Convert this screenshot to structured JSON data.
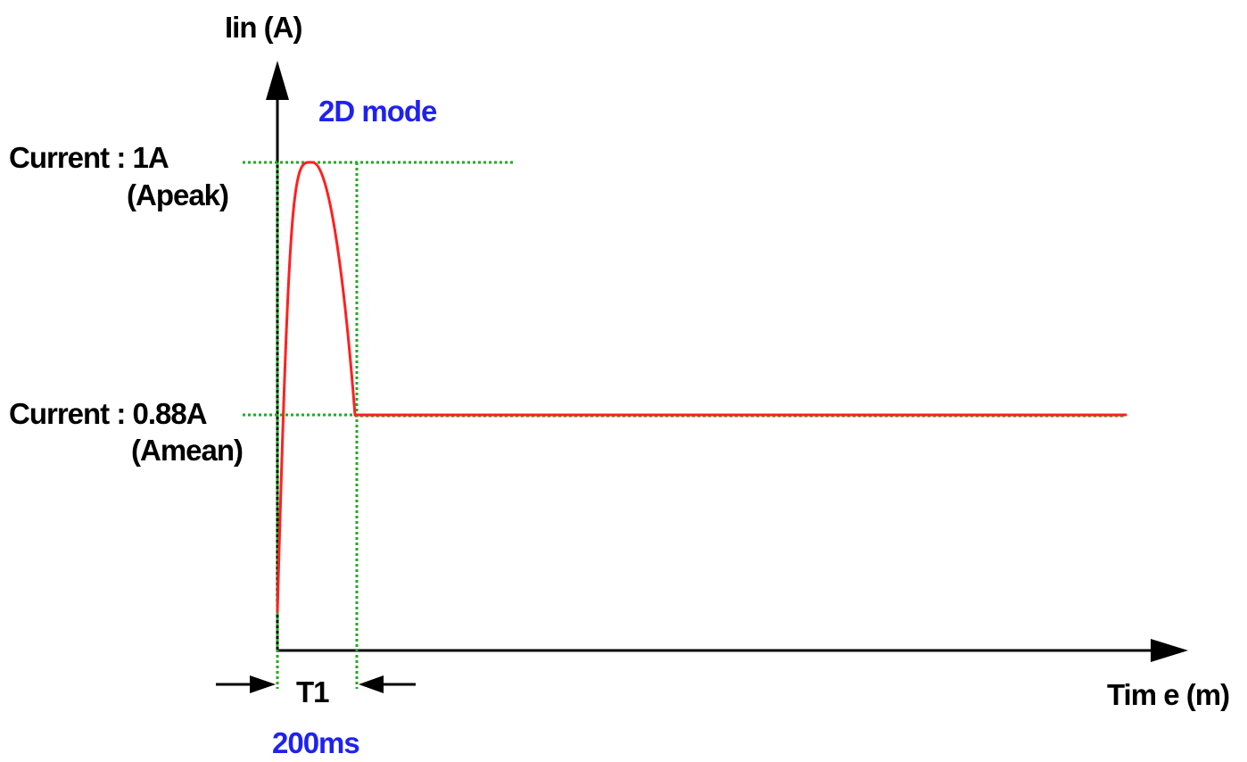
{
  "y_axis_label": "Iin (A)",
  "x_axis_label": "Tim e (m)",
  "mode_label": "2D mode",
  "peak": {
    "label": "Current : 1A",
    "sublabel": "(Apeak)",
    "value": 1
  },
  "mean": {
    "label": "Current : 0.88A",
    "sublabel": "(Amean)",
    "value": 0.88
  },
  "interval": {
    "label": "T1",
    "duration_label": "200ms"
  },
  "colors": {
    "curve": "#ff2020",
    "guides": "#22aa22",
    "axes": "#000000",
    "blue_text": "#1f22ee"
  }
}
